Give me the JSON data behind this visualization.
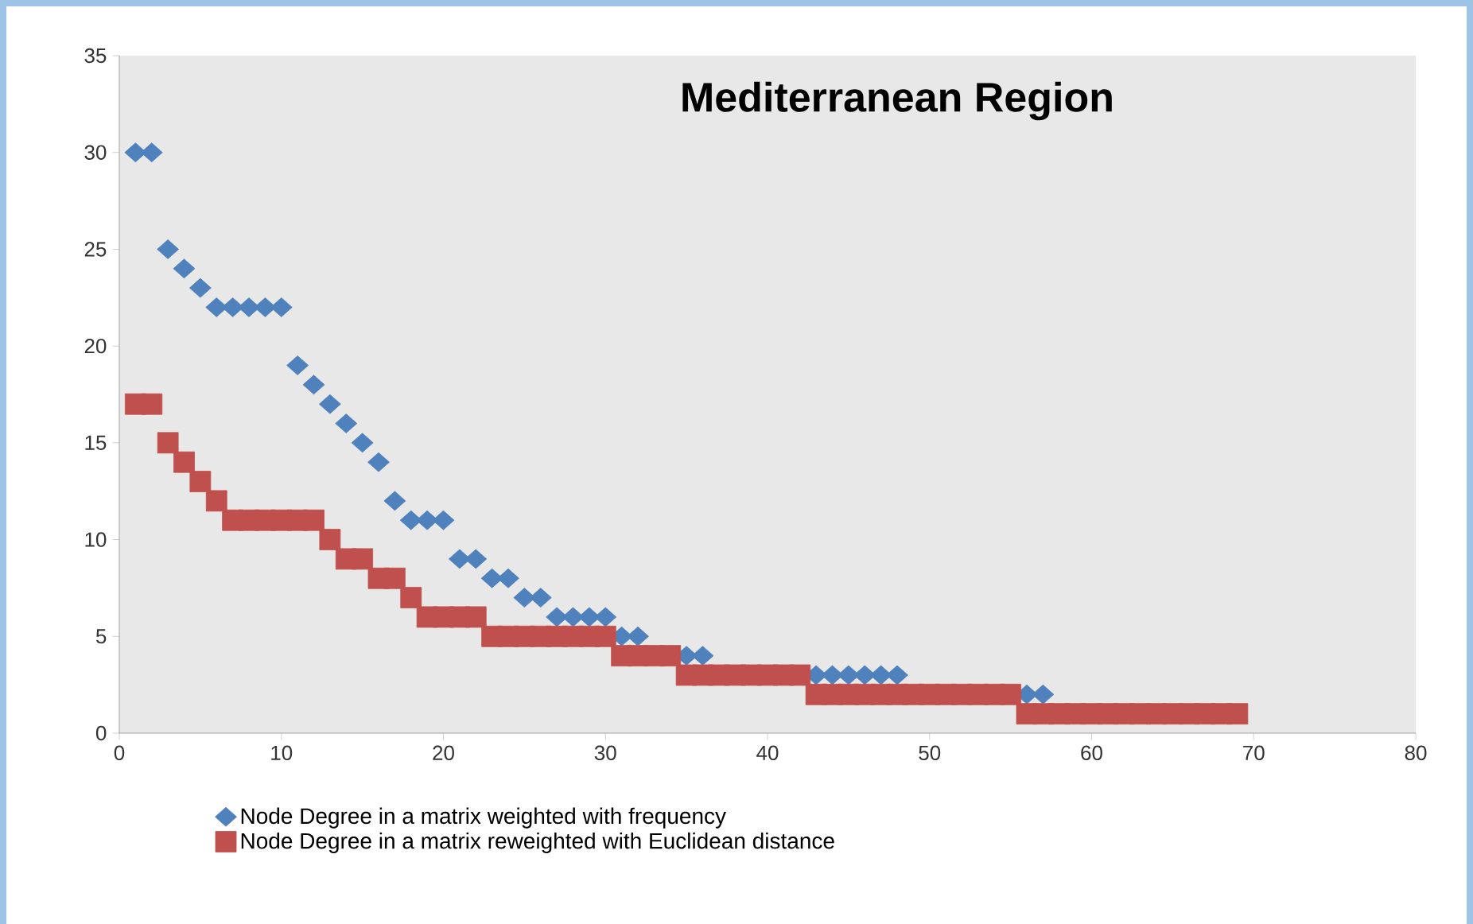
{
  "chart_data": {
    "type": "scatter",
    "title": "Mediterranean Region",
    "xlim": [
      0,
      80
    ],
    "ylim": [
      0,
      35
    ],
    "xticks": [
      0,
      10,
      20,
      30,
      40,
      50,
      60,
      70,
      80
    ],
    "yticks": [
      0,
      5,
      10,
      15,
      20,
      25,
      30,
      35
    ],
    "grid": false,
    "legend": "bottom",
    "x": [
      1,
      2,
      3,
      4,
      5,
      6,
      7,
      8,
      9,
      10,
      11,
      12,
      13,
      14,
      15,
      16,
      17,
      18,
      19,
      20,
      21,
      22,
      23,
      24,
      25,
      26,
      27,
      28,
      29,
      30,
      31,
      32,
      33,
      34,
      35,
      36,
      37,
      38,
      39,
      40,
      41,
      42,
      43,
      44,
      45,
      46,
      47,
      48,
      49,
      50,
      51,
      52,
      53,
      54,
      55,
      56,
      57,
      58,
      59,
      60,
      61,
      62,
      63,
      64,
      65,
      66,
      67,
      68,
      69
    ],
    "series": [
      {
        "name": "Node Degree in a matrix weighted with frequency",
        "color": "#4f81bd",
        "marker": "diamond",
        "values": [
          30,
          30,
          25,
          24,
          23,
          22,
          22,
          22,
          22,
          22,
          19,
          18,
          17,
          16,
          15,
          14,
          12,
          11,
          11,
          11,
          9,
          9,
          8,
          8,
          7,
          7,
          6,
          6,
          6,
          6,
          5,
          5,
          null,
          null,
          4,
          4,
          null,
          null,
          null,
          null,
          null,
          null,
          3,
          3,
          3,
          3,
          3,
          3,
          null,
          null,
          null,
          null,
          null,
          null,
          null,
          2,
          2,
          null,
          null,
          null,
          null,
          null,
          null,
          null,
          null,
          null,
          null,
          null,
          null
        ]
      },
      {
        "name": "Node Degree in a matrix reweighted with Euclidean distance",
        "color": "#c0504d",
        "marker": "square",
        "values": [
          17,
          17,
          15,
          14,
          13,
          12,
          11,
          11,
          11,
          11,
          11,
          11,
          10,
          9,
          9,
          8,
          8,
          7,
          6,
          6,
          6,
          6,
          5,
          5,
          5,
          5,
          5,
          5,
          5,
          5,
          4,
          4,
          4,
          4,
          3,
          3,
          3,
          3,
          3,
          3,
          3,
          3,
          2,
          2,
          2,
          2,
          2,
          2,
          2,
          2,
          2,
          2,
          2,
          2,
          2,
          1,
          1,
          1,
          1,
          1,
          1,
          1,
          1,
          1,
          1,
          1,
          1,
          1,
          1
        ]
      }
    ]
  }
}
